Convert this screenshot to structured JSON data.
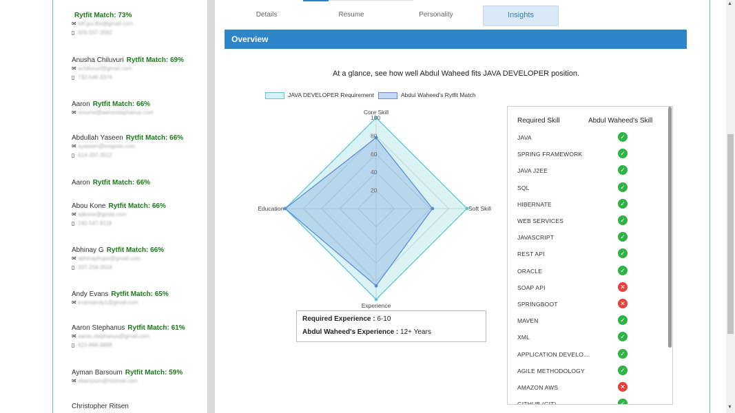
{
  "candidates": [
    {
      "name": "",
      "match": "Rytfit Match: 73%",
      "email": "bill.gui.fbs@gmail.com",
      "phone": "609-557-3562"
    },
    {
      "name": "Anusha Chiluvuri",
      "match": "Rytfit Match: 69%",
      "email": "achiluvuri@gmail.com",
      "phone": "732-546-3374"
    },
    {
      "name": "Aaron",
      "match": "Rytfit Match: 66%",
      "email": "resume@aaronstephanus.com",
      "phone": ""
    },
    {
      "name": "Abdullah Yaseen",
      "match": "Rytfit Match: 66%",
      "email": "ayaseen@exqsoto.com",
      "phone": "614-397-3512"
    },
    {
      "name": "Aaron",
      "match": "Rytfit Match: 66%",
      "email": "",
      "phone": ""
    },
    {
      "name": "Abou Kone",
      "match": "Rytfit Match: 66%",
      "email": "adkone@gmail.com",
      "phone": "240-547-9118"
    },
    {
      "name": "Abhinay G",
      "match": "Rytfit Match: 66%",
      "email": "abhinaytrupa@gmail.com",
      "phone": "337-258-3558"
    },
    {
      "name": "Andy Evans",
      "match": "Rytfit Match: 65%",
      "email": "evansandy1@gmail.com",
      "phone": ""
    },
    {
      "name": "Aaron Stephanus",
      "match": "Rytfit Match: 61%",
      "email": "aaron.stephanus@gmail.com",
      "phone": "623-866-9898"
    },
    {
      "name": "Ayman Barsoum",
      "match": "Rytfit Match: 59%",
      "email": "abarsoum@hotmail.com",
      "phone": ""
    },
    {
      "name": "Christopher Ritsen",
      "match": "",
      "email": "",
      "phone": ""
    }
  ],
  "tabs": [
    "Details",
    "Resume",
    "Personality",
    "Insights"
  ],
  "overview_title": "Overview",
  "glance_text": "At a glance, see how well Abdul Waheed fits JAVA DEVELOPER position.",
  "chart_data": {
    "type": "radar",
    "axes": [
      "Core Skill",
      "Soft Skill",
      "Experience",
      "Education"
    ],
    "ticks": [
      "20",
      "40",
      "60",
      "80",
      "100"
    ],
    "range": [
      0,
      100
    ],
    "series": [
      {
        "name": "JAVA DEVELOPER Requirement",
        "values": [
          100,
          100,
          100,
          100
        ],
        "color": "#5bc8cf"
      },
      {
        "name": "Abdul Waheed's Rytfit Match",
        "values": [
          78,
          62,
          85,
          100
        ],
        "color": "#5a8fd6"
      }
    ]
  },
  "experience": {
    "required_label": "Required Experience :",
    "required_value": "6-10",
    "candidate_label": "Abdul Waheed's Experience :",
    "candidate_value": "12+ Years"
  },
  "skills_table": {
    "col1": "Required Skill",
    "col2": "Abdul Waheed's Skill",
    "rows": [
      {
        "skill": "JAVA",
        "has": true
      },
      {
        "skill": "SPRING FRAMEWORK",
        "has": true
      },
      {
        "skill": "JAVA J2EE",
        "has": true
      },
      {
        "skill": "SQL",
        "has": true
      },
      {
        "skill": "HIBERNATE",
        "has": true
      },
      {
        "skill": "WEB SERVICES",
        "has": true
      },
      {
        "skill": "JAVASCRIPT",
        "has": true
      },
      {
        "skill": "REST API",
        "has": true
      },
      {
        "skill": "ORACLE",
        "has": true
      },
      {
        "skill": "SOAP API",
        "has": false
      },
      {
        "skill": "SPRINGBOOT",
        "has": false
      },
      {
        "skill": "MAVEN",
        "has": true
      },
      {
        "skill": "XML",
        "has": true
      },
      {
        "skill": "APPLICATION DEVELO...",
        "has": true
      },
      {
        "skill": "AGILE METHODOLOGY",
        "has": true
      },
      {
        "skill": "AMAZON AWS",
        "has": false
      },
      {
        "skill": "GITHUB (GIT)",
        "has": true
      }
    ]
  },
  "icons": {
    "email": "envelope-icon",
    "phone": "phone-icon",
    "check": "check-circle-icon",
    "cross": "x-circle-icon"
  }
}
